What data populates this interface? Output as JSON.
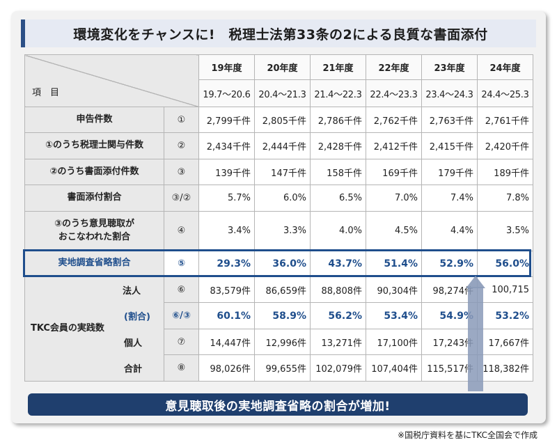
{
  "title": "環境変化をチャンスに!　税理士法第33条の2による良質な書面添付",
  "header": {
    "item_label": "項　目",
    "years": [
      "19年度",
      "20年度",
      "21年度",
      "22年度",
      "23年度",
      "24年度"
    ],
    "periods": [
      "19.7～20.6",
      "20.4～21.3",
      "21.4～22.3",
      "22.4～23.3",
      "23.4～24.3",
      "24.4～25.3"
    ]
  },
  "rows": [
    {
      "label": "申告件数",
      "num": "①",
      "values": [
        "2,799千件",
        "2,805千件",
        "2,786千件",
        "2,762千件",
        "2,763千件",
        "2,761千件"
      ]
    },
    {
      "label": "①のうち税理士関与件数",
      "num": "②",
      "values": [
        "2,434千件",
        "2,444千件",
        "2,428千件",
        "2,412千件",
        "2,415千件",
        "2,420千件"
      ]
    },
    {
      "label": "②のうち書面添付件数",
      "num": "③",
      "values": [
        "139千件",
        "147千件",
        "158千件",
        "169千件",
        "179千件",
        "189千件"
      ]
    },
    {
      "label": "書面添付割合",
      "num": "③/②",
      "values": [
        "5.7%",
        "6.0%",
        "6.5%",
        "7.0%",
        "7.4%",
        "7.8%"
      ]
    },
    {
      "label_line1": "③のうち意見聴取が",
      "label_line2": "おこなわれた割合",
      "num": "④",
      "values": [
        "3.4%",
        "3.3%",
        "4.0%",
        "4.5%",
        "4.4%",
        "3.5%"
      ]
    },
    {
      "label": "実地調査省略割合",
      "num": "⑤",
      "values": [
        "29.3%",
        "36.0%",
        "43.7%",
        "51.4%",
        "52.9%",
        "56.0%"
      ]
    }
  ],
  "tkc": {
    "group_label": "TKC会員の実践数",
    "rows": [
      {
        "label": "法人",
        "num": "⑥",
        "values": [
          "83,579件",
          "86,659件",
          "88,808件",
          "90,304件",
          "98,274件",
          "100,715"
        ]
      },
      {
        "label": "(割合)",
        "num": "⑥/③",
        "values": [
          "60.1%",
          "58.9%",
          "56.2%",
          "53.4%",
          "54.9%",
          "53.2%"
        ]
      },
      {
        "label": "個人",
        "num": "⑦",
        "values": [
          "14,447件",
          "12,996件",
          "13,271件",
          "17,100件",
          "17,243件",
          "17,667件"
        ]
      },
      {
        "label": "合計",
        "num": "⑧",
        "values": [
          "98,026件",
          "99,655件",
          "102,079件",
          "107,404件",
          "115,517件",
          "118,382件"
        ]
      }
    ]
  },
  "banner": "意見聴取後の実地調査省略の割合が増加!",
  "footnote": "※国税庁資料を基にTKC全国会で作成",
  "colors": {
    "accent": "#1f4e8c",
    "banner": "#1f3f6e",
    "arrow": "#8a9ab8"
  }
}
